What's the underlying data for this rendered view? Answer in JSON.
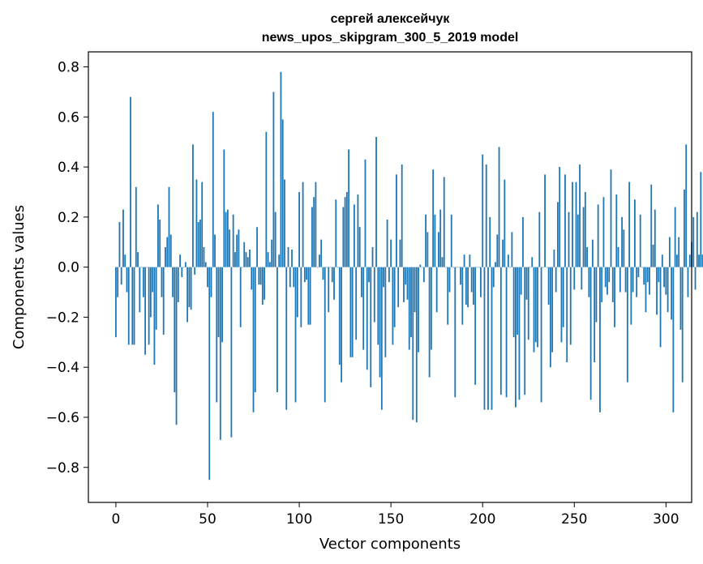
{
  "chart_data": {
    "type": "bar",
    "title": "сергей алексейчук",
    "subtitle": "news_upos_skipgram_300_5_2019 model",
    "xlabel": "Vector components",
    "ylabel": "Components values",
    "xlim": [
      -15,
      314
    ],
    "ylim": [
      -0.94,
      0.86
    ],
    "xticks": [
      0,
      50,
      100,
      150,
      200,
      250,
      300
    ],
    "yticks": [
      -0.8,
      -0.6,
      -0.4,
      -0.2,
      0.0,
      0.2,
      0.4,
      0.6,
      0.8
    ],
    "ytick_labels": [
      "−0.8",
      "−0.6",
      "−0.4",
      "−0.2",
      "0.0",
      "0.2",
      "0.4",
      "0.6",
      "0.8"
    ],
    "xtick_labels": [
      "0",
      "50",
      "100",
      "150",
      "200",
      "250",
      "300"
    ],
    "bar_color": "#1f77b4",
    "values": [
      -0.28,
      -0.12,
      0.18,
      -0.07,
      0.23,
      0.05,
      -0.1,
      -0.31,
      0.68,
      -0.31,
      -0.31,
      0.32,
      0.06,
      -0.18,
      0.0,
      -0.12,
      -0.35,
      0.0,
      -0.31,
      -0.2,
      -0.1,
      -0.39,
      -0.25,
      0.25,
      0.19,
      -0.12,
      -0.27,
      0.08,
      0.12,
      0.32,
      0.13,
      -0.12,
      -0.5,
      -0.63,
      -0.14,
      0.05,
      -0.04,
      0.0,
      0.02,
      -0.22,
      -0.16,
      -0.17,
      0.49,
      -0.03,
      0.35,
      0.18,
      0.19,
      0.34,
      0.08,
      0.02,
      -0.08,
      -0.85,
      -0.12,
      0.62,
      0.13,
      -0.54,
      -0.28,
      -0.69,
      -0.3,
      0.47,
      0.22,
      0.23,
      0.15,
      -0.68,
      0.21,
      0.06,
      0.13,
      0.15,
      -0.24,
      0.0,
      0.1,
      0.06,
      0.04,
      0.07,
      -0.09,
      -0.58,
      -0.5,
      0.16,
      -0.07,
      -0.07,
      -0.15,
      -0.13,
      0.54,
      0.06,
      0.02,
      0.11,
      0.7,
      0.22,
      -0.5,
      0.05,
      0.78,
      0.59,
      0.35,
      -0.57,
      0.08,
      -0.08,
      0.07,
      -0.08,
      -0.54,
      -0.2,
      0.3,
      -0.24,
      0.34,
      -0.06,
      -0.05,
      -0.23,
      -0.23,
      0.24,
      0.28,
      0.34,
      0.0,
      0.05,
      0.11,
      -0.05,
      -0.54,
      0.0,
      -0.18,
      0.0,
      -0.06,
      -0.13,
      0.27,
      0.0,
      -0.39,
      -0.46,
      0.24,
      0.28,
      0.3,
      0.47,
      -0.36,
      -0.36,
      0.25,
      -0.29,
      0.29,
      0.16,
      -0.12,
      -0.33,
      0.43,
      -0.41,
      -0.06,
      -0.48,
      0.08,
      -0.22,
      0.52,
      -0.31,
      -0.44,
      -0.57,
      -0.08,
      -0.36,
      0.19,
      -0.06,
      0.11,
      -0.31,
      -0.24,
      0.37,
      -0.16,
      0.11,
      0.41,
      -0.14,
      -0.07,
      -0.13,
      -0.33,
      -0.28,
      -0.61,
      -0.18,
      -0.62,
      -0.34,
      0.01,
      0.0,
      -0.06,
      0.21,
      0.14,
      -0.44,
      -0.33,
      0.39,
      0.21,
      -0.18,
      0.14,
      0.23,
      0.04,
      0.36,
      0.0,
      -0.23,
      -0.1,
      0.21,
      0.0,
      -0.52,
      0.0,
      0.0,
      -0.07,
      -0.23,
      0.05,
      -0.15,
      -0.16,
      0.05,
      -0.1,
      -0.15,
      -0.47,
      0.0,
      0.0,
      -0.12,
      0.45,
      -0.57,
      0.41,
      -0.57,
      0.2,
      -0.57,
      -0.08,
      0.02,
      0.13,
      0.48,
      -0.51,
      0.11,
      0.35,
      -0.52,
      0.05,
      0.0,
      0.14,
      -0.28,
      -0.56,
      -0.27,
      -0.53,
      -0.11,
      0.2,
      -0.51,
      -0.13,
      -0.29,
      0.0,
      0.04,
      -0.34,
      -0.3,
      -0.32,
      0.22,
      -0.54,
      0.0,
      0.37,
      0.0,
      -0.15,
      -0.4,
      -0.34,
      0.07,
      -0.1,
      0.26,
      0.4,
      -0.3,
      -0.24,
      0.37,
      -0.38,
      0.22,
      -0.31,
      0.34,
      -0.09,
      0.34,
      0.21,
      0.41,
      -0.09,
      0.24,
      0.3,
      0.08,
      -0.12,
      -0.53,
      0.11,
      -0.38,
      -0.22,
      0.25,
      -0.58,
      -0.14,
      0.28,
      -0.08,
      -0.11,
      -0.06,
      0.39,
      -0.14,
      -0.24,
      0.29,
      0.08,
      -0.1,
      0.2,
      0.15,
      -0.1,
      -0.46,
      0.34,
      -0.23,
      -0.1,
      0.27,
      -0.12,
      -0.04,
      0.21,
      0.0,
      -0.07,
      -0.18,
      -0.06,
      -0.11,
      0.33,
      0.09,
      0.23,
      -0.19,
      -0.06,
      -0.32,
      0.05,
      -0.08,
      -0.11,
      -0.18,
      0.12,
      -0.21,
      -0.58,
      0.24,
      0.05,
      0.12,
      -0.25,
      -0.46,
      0.31,
      0.49,
      -0.12,
      0.05,
      0.1,
      0.2,
      -0.09,
      0.22,
      0.05,
      0.38,
      0.05
    ]
  }
}
